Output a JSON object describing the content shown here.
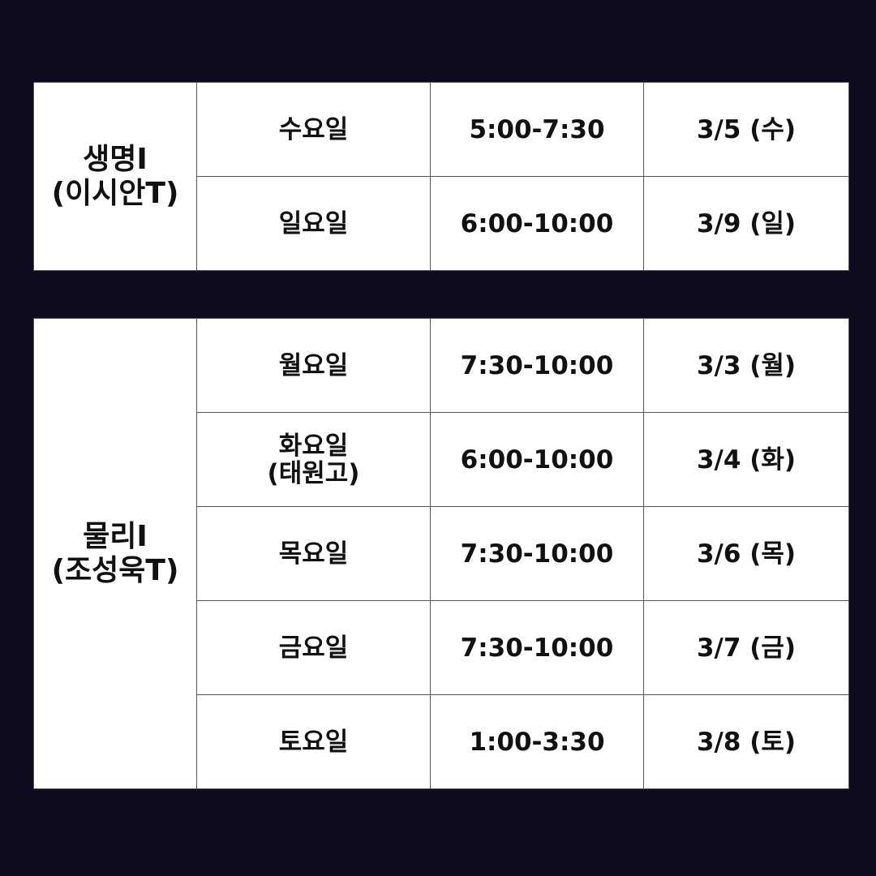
{
  "bio": {
    "subject_line1": "생명I",
    "subject_line2": "(이시안T)",
    "rows": [
      {
        "day": "수요일",
        "time": "5:00-7:30",
        "date": "3/5 (수)"
      },
      {
        "day": "일요일",
        "time": "6:00-10:00",
        "date": "3/9 (일)"
      }
    ]
  },
  "physics": {
    "subject_line1": "물리I",
    "subject_line2": "(조성욱T)",
    "rows": [
      {
        "day": "월요일",
        "time": "7:30-10:00",
        "date": "3/3 (월)"
      },
      {
        "day": "화요일",
        "day_sub": "(태원고)",
        "time": "6:00-10:00",
        "date": "3/4 (화)"
      },
      {
        "day": "목요일",
        "time": "7:30-10:00",
        "date": "3/6 (목)"
      },
      {
        "day": "금요일",
        "time": "7:30-10:00",
        "date": "3/7 (금)"
      },
      {
        "day": "토요일",
        "time": "1:00-3:30",
        "date": "3/8 (토)"
      }
    ]
  }
}
